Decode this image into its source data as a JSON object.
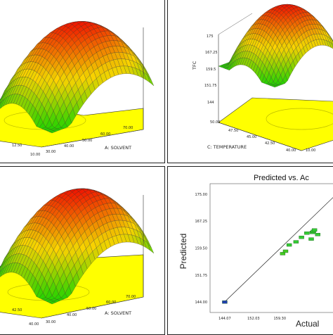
{
  "panels": [
    {
      "type": "surface",
      "x_label": "A: SOLVENT",
      "x_ticks": [
        "30.00",
        "40.00",
        "50.00",
        "60.00",
        "70.00"
      ],
      "y_ticks": [
        "10.00",
        "12.50"
      ],
      "z_label": "",
      "z_ticks": []
    },
    {
      "type": "surface",
      "x_label": "C: TEMPERATURE",
      "x_ticks": [
        "40.00",
        "42.50",
        "45.00",
        "47.50",
        "50.00"
      ],
      "y_ticks": [
        "10.00"
      ],
      "z_label": "TFC",
      "z_ticks": [
        "144",
        "151.75",
        "159.5",
        "167.25",
        "175"
      ]
    },
    {
      "type": "surface",
      "x_label": "A: SOLVENT",
      "x_ticks": [
        "30.00",
        "40.00",
        "50.00",
        "60.00",
        "70.00"
      ],
      "y_ticks": [
        "40.00",
        "42.50"
      ],
      "z_label": "",
      "z_ticks": []
    }
  ],
  "chart_data": {
    "type": "scatter",
    "title": "Predicted vs. Ac",
    "xlabel": "Actual",
    "ylabel": "Predicted",
    "x_ticks": [
      "144.07",
      "152.03",
      "159.30"
    ],
    "y_ticks": [
      "144.00",
      "151.75",
      "159.50",
      "167.25",
      "175.00"
    ],
    "xlim": [
      140,
      175
    ],
    "ylim": [
      141,
      178
    ],
    "points": [
      {
        "x": 144.07,
        "y": 144.0,
        "color": "#1f3fb0"
      },
      {
        "x": 160.1,
        "y": 157.9,
        "color": "#44cc22"
      },
      {
        "x": 160.9,
        "y": 158.6,
        "color": "#44cc22"
      },
      {
        "x": 161.9,
        "y": 160.4,
        "color": "#33cc33"
      },
      {
        "x": 163.8,
        "y": 161.3,
        "color": "#33cc33"
      },
      {
        "x": 165.3,
        "y": 162.6,
        "color": "#33cc33"
      },
      {
        "x": 166.8,
        "y": 163.8,
        "color": "#33cc33"
      },
      {
        "x": 168.3,
        "y": 164.0,
        "color": "#33cc33"
      },
      {
        "x": 168.6,
        "y": 164.3,
        "color": "#33cc33"
      },
      {
        "x": 168.9,
        "y": 164.7,
        "color": "#33cc33"
      },
      {
        "x": 169.8,
        "y": 163.4,
        "color": "#33cc33"
      },
      {
        "x": 168.0,
        "y": 162.1,
        "color": "#33cc33"
      }
    ],
    "fit_line": [
      [
        144.0,
        144.0
      ],
      [
        175.0,
        175.0
      ]
    ]
  }
}
